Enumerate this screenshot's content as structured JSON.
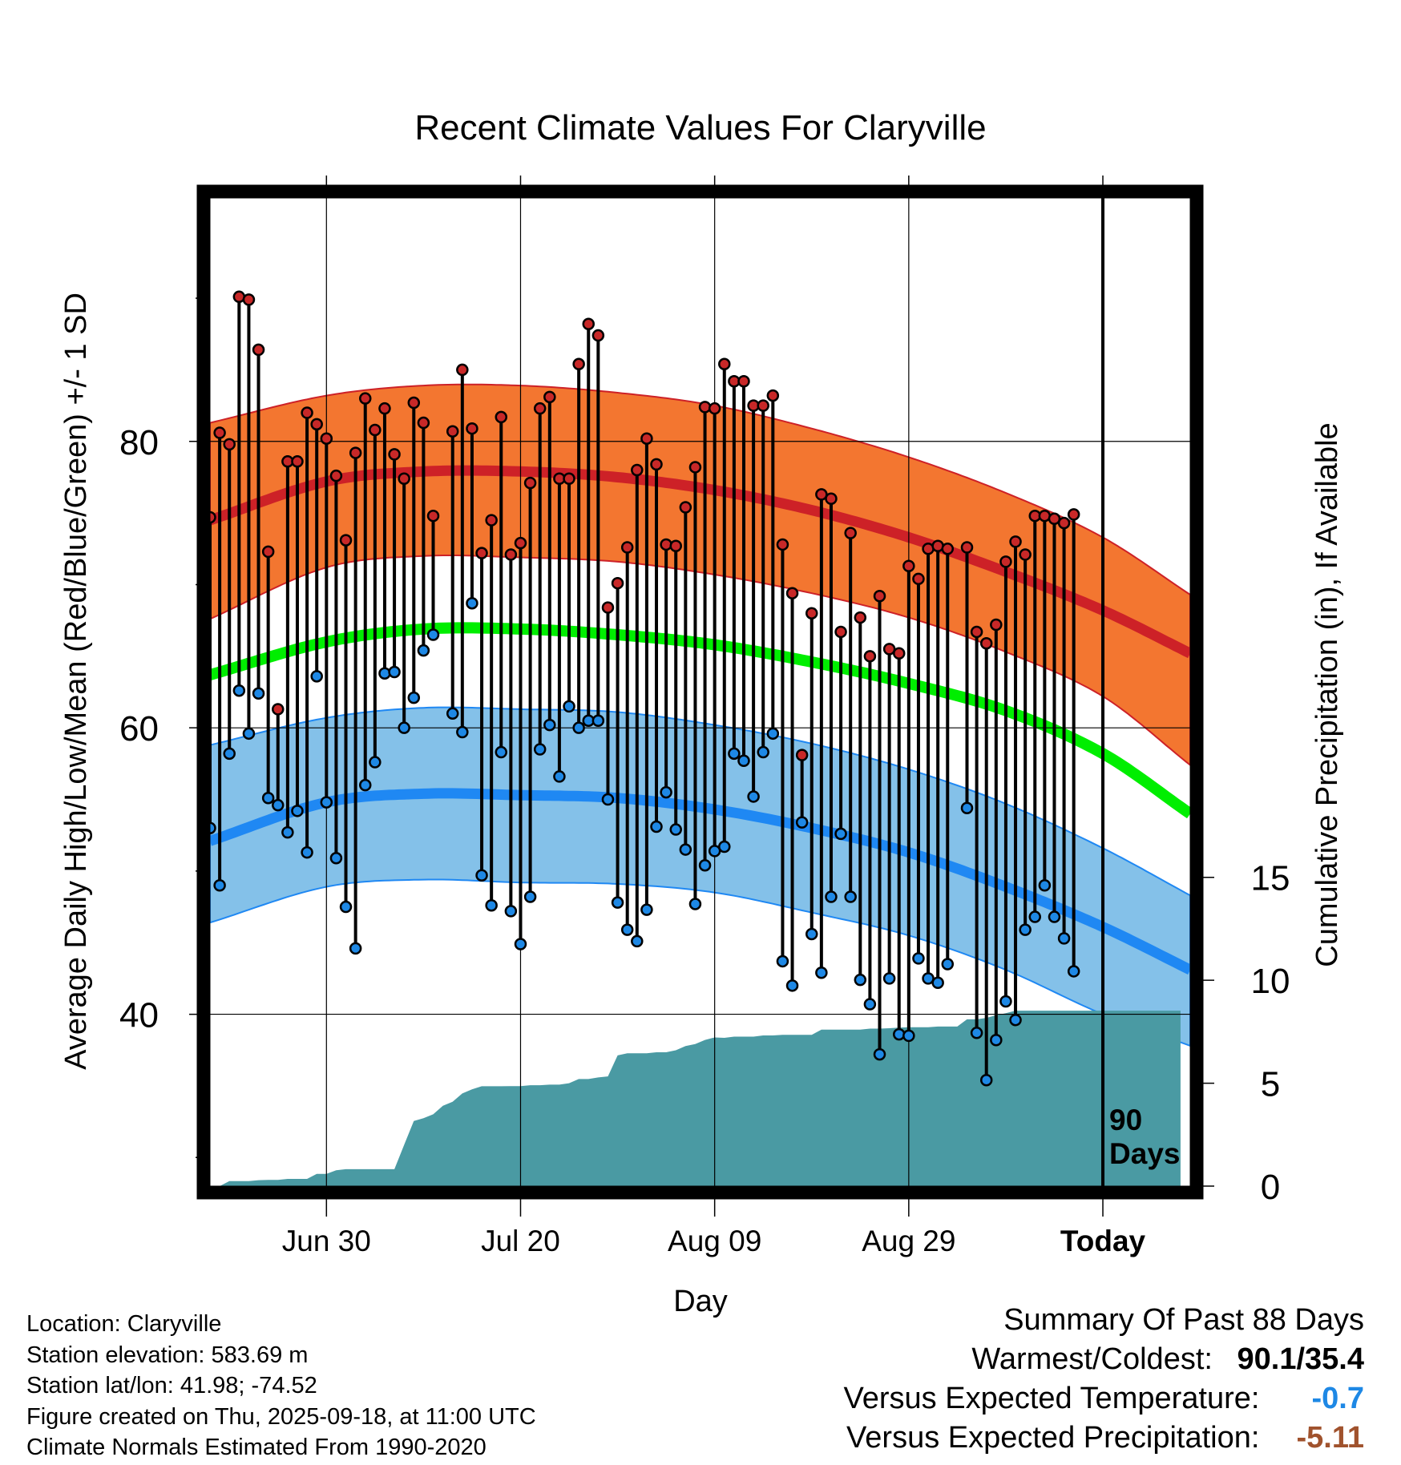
{
  "colors": {
    "high_band": "#f37630",
    "high_line": "#cd2127",
    "low_band": "#84c1e9",
    "low_line": "#1f88f3",
    "mean_line": "#00ee00",
    "precip_fill": "#4a9aa3",
    "high_dot": "#c82828",
    "low_dot": "#1e88e5",
    "vs_temp": "#1e88e5",
    "vs_precip": "#a0522d"
  },
  "chart_data": {
    "type": "line",
    "title": "Recent Climate Values For Claryville",
    "xlabel": "Day",
    "ylabel_left": "Average Daily High/Low/Mean (Red/Blue/Green) +/- 1 SD",
    "ylabel_right": "Cumulative Precipitation (in), If Available",
    "x_ticks": [
      {
        "day": 12,
        "label": "Jun 30"
      },
      {
        "day": 32,
        "label": "Jul 20"
      },
      {
        "day": 52,
        "label": "Aug 09"
      },
      {
        "day": 72,
        "label": "Aug 29"
      },
      {
        "day": 92,
        "label": "Today"
      }
    ],
    "xlim": [
      0,
      101
    ],
    "y_left_range": [
      28,
      97
    ],
    "y_left_ticks": [
      40,
      60,
      80
    ],
    "y_left_minor": [
      30,
      50,
      70,
      90
    ],
    "y_right_range": [
      0,
      48
    ],
    "y_right_ticks": [
      0,
      5,
      10,
      15
    ],
    "window_label": "90\nDays",
    "normals": {
      "days": [
        0,
        12,
        22,
        32,
        42,
        52,
        62,
        72,
        82,
        92,
        101
      ],
      "high_mean": [
        74.5,
        77.2,
        77.9,
        77.9,
        77.5,
        76.6,
        75.2,
        73.3,
        70.9,
        68.2,
        65.2
      ],
      "high_sd_upper": [
        81.3,
        83.2,
        83.9,
        83.9,
        83.4,
        82.5,
        80.9,
        78.9,
        76.4,
        73.3,
        69.3
      ],
      "high_sd_lower": [
        67.6,
        71.2,
        72.0,
        71.9,
        71.6,
        70.7,
        69.4,
        67.7,
        65.3,
        62.2,
        57.4
      ],
      "mean": [
        63.7,
        66.0,
        66.9,
        66.9,
        66.5,
        65.8,
        64.6,
        63.1,
        61.2,
        58.2,
        54.0
      ],
      "low_mean": [
        52.1,
        54.8,
        55.4,
        55.3,
        55.1,
        54.3,
        53.0,
        51.3,
        48.9,
        46.1,
        43.1
      ],
      "low_sd_upper": [
        58.8,
        60.7,
        61.4,
        61.3,
        61.1,
        60.2,
        58.9,
        57.1,
        54.7,
        51.6,
        48.3
      ],
      "low_sd_lower": [
        46.4,
        48.9,
        49.4,
        49.2,
        49.1,
        48.5,
        47.1,
        45.5,
        43.1,
        40.0,
        37.8
      ]
    },
    "series": [
      {
        "name": "Daily High",
        "values": [
          74.7,
          80.6,
          79.8,
          90.1,
          89.9,
          86.4,
          72.3,
          61.3,
          78.6,
          78.6,
          82.0,
          81.2,
          80.2,
          77.6,
          73.1,
          79.2,
          83.0,
          80.8,
          82.3,
          79.1,
          77.4,
          82.7,
          81.3,
          74.8,
          null,
          80.7,
          85.0,
          80.9,
          72.2,
          74.5,
          81.7,
          72.1,
          72.9,
          77.1,
          82.3,
          83.1,
          77.4,
          77.4,
          85.4,
          88.2,
          87.4,
          68.4,
          70.1,
          72.6,
          78.0,
          80.2,
          78.4,
          72.8,
          72.7,
          75.4,
          78.2,
          82.4,
          82.3,
          85.4,
          84.2,
          84.2,
          82.5,
          82.5,
          83.2,
          72.8,
          69.4,
          58.1,
          68.0,
          76.3,
          76.0,
          66.7,
          73.6,
          67.7,
          65.0,
          69.2,
          65.5,
          65.2,
          71.3,
          70.4,
          72.5,
          72.7,
          72.5,
          null,
          72.6,
          66.7,
          65.9,
          67.2,
          71.6,
          73.0,
          72.1,
          74.8,
          74.8,
          74.6,
          74.3,
          74.9
        ]
      },
      {
        "name": "Daily Low",
        "values": [
          53.0,
          49.0,
          58.2,
          62.6,
          59.6,
          62.4,
          55.1,
          54.6,
          52.7,
          54.2,
          51.3,
          63.6,
          54.8,
          50.9,
          47.5,
          44.6,
          56.0,
          57.6,
          63.8,
          63.9,
          60.0,
          62.1,
          65.4,
          66.5,
          null,
          61.0,
          59.7,
          68.7,
          49.7,
          47.6,
          58.3,
          47.2,
          44.9,
          48.2,
          58.5,
          60.2,
          56.6,
          61.5,
          60.0,
          60.5,
          60.5,
          55.0,
          47.8,
          45.9,
          45.1,
          47.3,
          53.1,
          55.5,
          52.9,
          51.5,
          47.7,
          50.4,
          51.4,
          51.7,
          58.2,
          57.7,
          55.2,
          58.3,
          59.6,
          43.7,
          42.0,
          53.4,
          45.6,
          42.9,
          48.2,
          52.6,
          48.2,
          42.4,
          40.7,
          37.2,
          42.5,
          38.6,
          38.5,
          43.9,
          42.5,
          42.2,
          43.5,
          null,
          54.4,
          38.7,
          35.4,
          38.2,
          40.9,
          39.6,
          45.9,
          46.8,
          49.0,
          46.8,
          45.3,
          43.0
        ]
      },
      {
        "name": "Cumulative Precipitation",
        "values": [
          0.0,
          0.0,
          0.24,
          0.24,
          0.24,
          0.29,
          0.3,
          0.3,
          0.35,
          0.35,
          0.35,
          0.59,
          0.59,
          0.77,
          0.82,
          0.82,
          0.82,
          0.82,
          0.82,
          0.82,
          2.0,
          3.16,
          3.3,
          3.49,
          3.9,
          4.1,
          4.5,
          4.7,
          4.85,
          4.85,
          4.85,
          4.86,
          4.86,
          4.9,
          4.9,
          4.93,
          4.93,
          5.0,
          5.2,
          5.2,
          5.28,
          5.33,
          6.35,
          6.45,
          6.45,
          6.45,
          6.5,
          6.5,
          6.6,
          6.8,
          6.9,
          7.1,
          7.22,
          7.2,
          7.26,
          7.26,
          7.26,
          7.32,
          7.32,
          7.35,
          7.35,
          7.35,
          7.35,
          7.6,
          7.6,
          7.6,
          7.6,
          7.6,
          7.65,
          7.65,
          7.67,
          7.7,
          7.72,
          7.72,
          7.72,
          7.75,
          7.75,
          7.75,
          8.1,
          8.1,
          8.17,
          8.3,
          8.4,
          8.52,
          8.52,
          8.52,
          8.52,
          8.52,
          8.52,
          8.52,
          8.52,
          8.52,
          8.52,
          8.52,
          8.52,
          8.52,
          8.52,
          8.52,
          8.52,
          8.52,
          8.52
        ]
      }
    ]
  },
  "info": {
    "location": "Location: Claryville",
    "elevation": "Station elevation: 583.69 m",
    "latlon": "Station lat/lon: 41.98; -74.52",
    "created": "Figure created on Thu, 2025-09-18, at 11:00 UTC",
    "normals_period": "Climate Normals Estimated From 1990-2020"
  },
  "summary": {
    "title": "Summary Of Past 88 Days",
    "warm_cold_label": "Warmest/Coldest:",
    "warm_cold_value": "90.1/35.4",
    "vs_temp_label": "Versus Expected Temperature:",
    "vs_temp_value": "-0.7",
    "vs_precip_label": "Versus Expected Precipitation:",
    "vs_precip_value": "-5.11"
  }
}
